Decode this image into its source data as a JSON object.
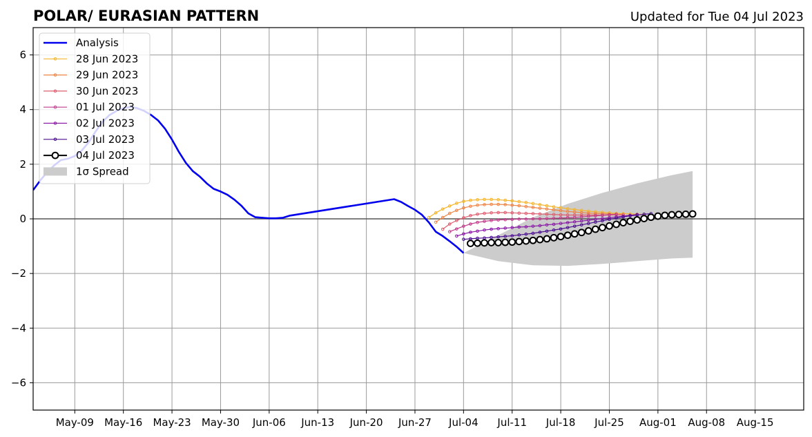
{
  "chart_data": {
    "type": "line",
    "title": "POLAR/ EURASIAN  PATTERN",
    "subtitle": "Updated for Tue 04 Jul 2023",
    "xlabel": "",
    "ylabel": "",
    "grid": true,
    "legend_position": "top-left",
    "xlim": [
      "2023-05-03",
      "2023-08-22"
    ],
    "ylim": [
      -7,
      7
    ],
    "x_ticks": [
      {
        "date": "2023-05-09",
        "label": "May-09"
      },
      {
        "date": "2023-05-16",
        "label": "May-16"
      },
      {
        "date": "2023-05-23",
        "label": "May-23"
      },
      {
        "date": "2023-05-30",
        "label": "May-30"
      },
      {
        "date": "2023-06-06",
        "label": "Jun-06"
      },
      {
        "date": "2023-06-13",
        "label": "Jun-13"
      },
      {
        "date": "2023-06-20",
        "label": "Jun-20"
      },
      {
        "date": "2023-06-27",
        "label": "Jun-27"
      },
      {
        "date": "2023-07-04",
        "label": "Jul-04"
      },
      {
        "date": "2023-07-11",
        "label": "Jul-11"
      },
      {
        "date": "2023-07-18",
        "label": "Jul-18"
      },
      {
        "date": "2023-07-25",
        "label": "Jul-25"
      },
      {
        "date": "2023-08-01",
        "label": "Aug-01"
      },
      {
        "date": "2023-08-08",
        "label": "Aug-08"
      },
      {
        "date": "2023-08-15",
        "label": "Aug-15"
      }
    ],
    "y_ticks": [
      {
        "value": 6,
        "label": "6"
      },
      {
        "value": 4,
        "label": "4"
      },
      {
        "value": 2,
        "label": "2"
      },
      {
        "value": 0,
        "label": "0"
      },
      {
        "value": -2,
        "label": "−2"
      },
      {
        "value": -4,
        "label": "−4"
      },
      {
        "value": -6,
        "label": "−6"
      }
    ],
    "analysis": {
      "name": "Analysis",
      "color": "#0000ee",
      "x": [
        "2023-05-03",
        "2023-05-04",
        "2023-05-05",
        "2023-05-06",
        "2023-05-07",
        "2023-05-08",
        "2023-05-09",
        "2023-05-10",
        "2023-05-11",
        "2023-05-12",
        "2023-05-13",
        "2023-05-14",
        "2023-05-15",
        "2023-05-16",
        "2023-05-17",
        "2023-05-18",
        "2023-05-19",
        "2023-05-20",
        "2023-05-21",
        "2023-05-22",
        "2023-05-23",
        "2023-05-24",
        "2023-05-25",
        "2023-05-26",
        "2023-05-27",
        "2023-05-28",
        "2023-05-29",
        "2023-05-30",
        "2023-05-31",
        "2023-06-01",
        "2023-06-02",
        "2023-06-03",
        "2023-06-04",
        "2023-06-05",
        "2023-06-06",
        "2023-06-07",
        "2023-06-08",
        "2023-06-09",
        "2023-06-24",
        "2023-06-25",
        "2023-06-26",
        "2023-06-27",
        "2023-06-28",
        "2023-06-29",
        "2023-06-30",
        "2023-07-01",
        "2023-07-02",
        "2023-07-03",
        "2023-07-04"
      ],
      "values": [
        1.05,
        1.4,
        1.7,
        1.95,
        2.15,
        2.2,
        2.3,
        2.5,
        2.8,
        3.2,
        3.55,
        3.8,
        3.95,
        4.05,
        4.1,
        4.05,
        3.95,
        3.8,
        3.6,
        3.3,
        2.9,
        2.45,
        2.05,
        1.75,
        1.55,
        1.3,
        1.1,
        1.0,
        0.88,
        0.7,
        0.48,
        0.2,
        0.06,
        0.04,
        0.02,
        0.02,
        0.04,
        0.12,
        0.72,
        0.62,
        0.47,
        0.33,
        0.15,
        -0.13,
        -0.47,
        -0.63,
        -0.82,
        -1.02,
        -1.25
      ]
    },
    "forecasts": [
      {
        "name": "28 Jun 2023",
        "color": "#f5b52b",
        "start": "2023-06-29",
        "values": [
          0.05,
          0.22,
          0.36,
          0.47,
          0.57,
          0.64,
          0.68,
          0.7,
          0.71,
          0.71,
          0.7,
          0.68,
          0.66,
          0.63,
          0.6,
          0.56,
          0.52,
          0.48,
          0.44,
          0.41,
          0.37,
          0.34,
          0.31,
          0.28,
          0.26,
          0.24,
          0.22,
          0.2,
          0.19,
          0.18,
          0.17,
          0.16
        ]
      },
      {
        "name": "29 Jun 2023",
        "color": "#ee8446",
        "start": "2023-06-30",
        "values": [
          -0.12,
          0.05,
          0.2,
          0.31,
          0.4,
          0.46,
          0.5,
          0.52,
          0.53,
          0.53,
          0.52,
          0.5,
          0.48,
          0.45,
          0.42,
          0.39,
          0.36,
          0.33,
          0.3,
          0.27,
          0.25,
          0.23,
          0.21,
          0.2,
          0.19,
          0.18,
          0.17,
          0.16
        ]
      },
      {
        "name": "30 Jun 2023",
        "color": "#de5d6e",
        "start": "2023-07-01",
        "values": [
          -0.38,
          -0.19,
          -0.06,
          0.04,
          0.12,
          0.17,
          0.2,
          0.22,
          0.23,
          0.23,
          0.22,
          0.21,
          0.2,
          0.19,
          0.18,
          0.17,
          0.16,
          0.15,
          0.14,
          0.14,
          0.14,
          0.14,
          0.14,
          0.14,
          0.14,
          0.15,
          0.15
        ]
      },
      {
        "name": "01 Jul 2023",
        "color": "#c03e8c",
        "start": "2023-07-02",
        "values": [
          -0.47,
          -0.37,
          -0.27,
          -0.19,
          -0.13,
          -0.09,
          -0.06,
          -0.04,
          -0.03,
          -0.02,
          -0.01,
          -0.01,
          0.0,
          0.0,
          0.01,
          0.02,
          0.03,
          0.04,
          0.05,
          0.07,
          0.09,
          0.11,
          0.13,
          0.15,
          0.17
        ]
      },
      {
        "name": "02 Jul 2023",
        "color": "#8a1aa6",
        "start": "2023-07-03",
        "values": [
          -0.63,
          -0.55,
          -0.49,
          -0.45,
          -0.41,
          -0.38,
          -0.36,
          -0.34,
          -0.32,
          -0.3,
          -0.29,
          -0.27,
          -0.25,
          -0.22,
          -0.2,
          -0.17,
          -0.14,
          -0.11,
          -0.08,
          -0.05,
          -0.02,
          0.01,
          0.04,
          0.07,
          0.1,
          0.13,
          0.16
        ]
      },
      {
        "name": "03 Jul 2023",
        "color": "#4a0d8f",
        "start": "2023-07-04",
        "values": [
          -0.75,
          -0.73,
          -0.71,
          -0.7,
          -0.68,
          -0.66,
          -0.64,
          -0.62,
          -0.59,
          -0.56,
          -0.53,
          -0.49,
          -0.45,
          -0.41,
          -0.37,
          -0.32,
          -0.27,
          -0.22,
          -0.17,
          -0.12,
          -0.07,
          -0.02,
          0.03,
          0.07,
          0.11,
          0.14,
          0.17,
          0.19
        ]
      },
      {
        "name": "04 Jul 2023",
        "color": "#000000",
        "markers": "open-circle",
        "start": "2023-07-05",
        "values": [
          -0.9,
          -0.89,
          -0.88,
          -0.87,
          -0.87,
          -0.86,
          -0.85,
          -0.83,
          -0.81,
          -0.79,
          -0.76,
          -0.73,
          -0.69,
          -0.65,
          -0.6,
          -0.55,
          -0.5,
          -0.44,
          -0.38,
          -0.32,
          -0.26,
          -0.2,
          -0.14,
          -0.09,
          -0.04,
          0.01,
          0.06,
          0.1,
          0.13,
          0.15,
          0.16,
          0.17,
          0.18
        ]
      }
    ],
    "spread": {
      "name": "1σ Spread",
      "color": "#cccccc",
      "x": [
        "2023-07-04",
        "2023-07-09",
        "2023-07-14",
        "2023-07-19",
        "2023-07-24",
        "2023-07-29",
        "2023-08-03",
        "2023-08-06"
      ],
      "upper": [
        -1.25,
        -0.6,
        0.05,
        0.55,
        0.95,
        1.3,
        1.6,
        1.75
      ],
      "lower": [
        -1.25,
        -1.55,
        -1.7,
        -1.72,
        -1.65,
        -1.55,
        -1.45,
        -1.42
      ]
    },
    "legend": [
      "Analysis",
      "28 Jun 2023",
      "29 Jun 2023",
      "30 Jun 2023",
      "01 Jul 2023",
      "02 Jul 2023",
      "03 Jul 2023",
      "04 Jul 2023",
      "1σ Spread"
    ]
  }
}
